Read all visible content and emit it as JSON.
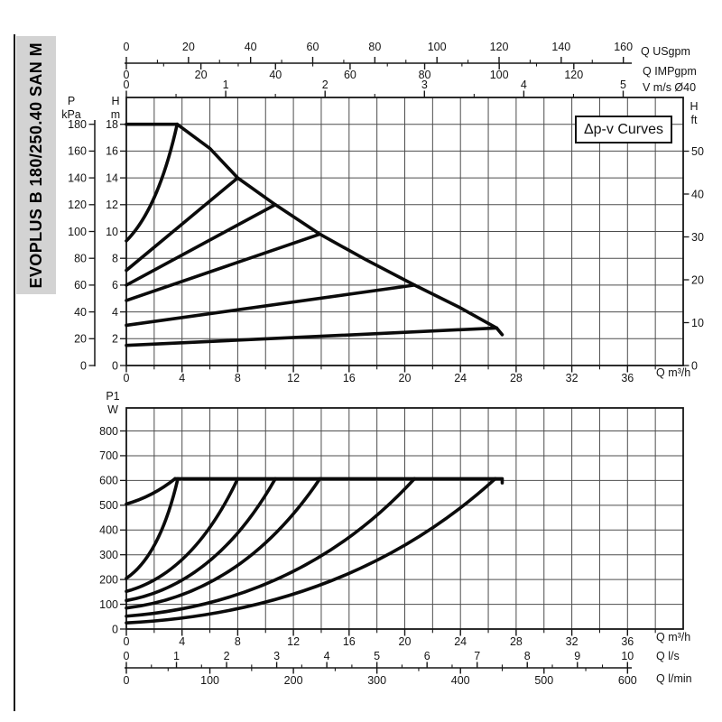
{
  "sidebar": {
    "title": "EVOPLUS B 180/250.40 SAN M"
  },
  "top_chart": {
    "badge_label": "Δp-v Curves",
    "axis_titles": {
      "usgpm": "Q USgpm",
      "impgpm": "Q IMPgpm",
      "vms": "V m/s Ø40",
      "kpa": "P\nkPa",
      "hm": "H\nm",
      "hft": "H\nft",
      "m3h": "Q m³/h"
    }
  },
  "bottom_chart": {
    "axis_titles": {
      "p1w": "P1\nW",
      "m3h": "Q m³/h",
      "ls": "Q l/s",
      "lmin": "Q l/min"
    }
  },
  "chart_data": [
    {
      "id": "head-flow-curves",
      "type": "line",
      "title": "Δp-v Curves",
      "xlabel": "Q m³/h",
      "ylabel": "H m",
      "x_range_m3h": [
        0,
        40
      ],
      "y_range_m": [
        0,
        20
      ],
      "grid": "on",
      "x_ticks_m3h": [
        0,
        4,
        8,
        12,
        16,
        20,
        24,
        28,
        32,
        36
      ],
      "x_minor_step_m3h": 2,
      "x_ticks_usgpm": [
        0,
        20,
        40,
        60,
        80,
        100,
        120,
        140,
        160
      ],
      "x_ticks_impgpm": [
        0,
        20,
        40,
        60,
        80,
        100,
        120
      ],
      "x_ticks_vms": [
        0,
        1,
        2,
        3,
        4,
        5
      ],
      "y_ticks_m": [
        0,
        2,
        4,
        6,
        8,
        10,
        12,
        14,
        16,
        18
      ],
      "y_ticks_kpa": [
        0,
        20,
        40,
        60,
        80,
        100,
        120,
        140,
        160,
        180
      ],
      "y_ticks_ft": [
        0,
        10,
        20,
        30,
        40,
        50
      ],
      "series": [
        {
          "name": "max-head-cap",
          "type": "line",
          "points": [
            [
              0,
              18
            ],
            [
              3.65,
              18
            ]
          ]
        },
        {
          "name": "dpv-setpoint-18m",
          "type": "quad",
          "points": [
            [
              0,
              9.3
            ],
            [
              2.3,
              11.7
            ],
            [
              3.65,
              18
            ]
          ]
        },
        {
          "name": "max-speed-envelope",
          "type": "line",
          "points": [
            [
              3.65,
              18
            ],
            [
              6,
              16.2
            ],
            [
              8,
              14
            ],
            [
              10.7,
              12
            ],
            [
              13.9,
              9.8
            ],
            [
              17.2,
              7.9
            ],
            [
              20.7,
              6.0
            ],
            [
              24,
              4.3
            ],
            [
              26.6,
              2.8
            ],
            [
              27.0,
              2.3
            ]
          ]
        },
        {
          "name": "dpv-setpoint-14m",
          "type": "line",
          "points": [
            [
              0,
              7.1
            ],
            [
              8,
              14
            ]
          ]
        },
        {
          "name": "dpv-setpoint-12m",
          "type": "line",
          "points": [
            [
              0,
              6.0
            ],
            [
              10.7,
              12
            ]
          ]
        },
        {
          "name": "dpv-setpoint-10m",
          "type": "line",
          "points": [
            [
              0,
              4.85
            ],
            [
              13.9,
              9.8
            ]
          ]
        },
        {
          "name": "dpv-setpoint-6m",
          "type": "line",
          "points": [
            [
              0,
              3.0
            ],
            [
              20.7,
              6.0
            ]
          ]
        },
        {
          "name": "dpv-setpoint-3m",
          "type": "line",
          "points": [
            [
              0,
              1.5
            ],
            [
              26.6,
              2.8
            ]
          ]
        }
      ]
    },
    {
      "id": "power-flow-curves",
      "type": "line",
      "xlabel": "Q m³/h",
      "ylabel": "P1 W",
      "x_range_m3h": [
        0,
        40
      ],
      "y_range_w": [
        0,
        890
      ],
      "grid": "on",
      "x_ticks_m3h": [
        0,
        4,
        8,
        12,
        16,
        20,
        24,
        28,
        32,
        36
      ],
      "x_minor_step_m3h": 2,
      "x_ticks_ls": [
        0,
        1,
        2,
        3,
        4,
        5,
        6,
        7,
        8,
        9,
        10
      ],
      "x_ticks_lmin": [
        0,
        100,
        200,
        300,
        400,
        500,
        600
      ],
      "y_ticks_w": [
        0,
        100,
        200,
        300,
        400,
        500,
        600,
        700,
        800
      ],
      "series": [
        {
          "name": "p1-max-head-cap",
          "type": "quad",
          "points": [
            [
              0,
              505
            ],
            [
              1.9,
              535
            ],
            [
              3.5,
              607
            ]
          ]
        },
        {
          "name": "p1-max-limit",
          "type": "line",
          "points": [
            [
              3.5,
              607
            ],
            [
              27.0,
              607
            ],
            [
              27.0,
              590
            ]
          ]
        },
        {
          "name": "p1-dpv-18m",
          "type": "quad",
          "points": [
            [
              0,
              205
            ],
            [
              2.4,
              295
            ],
            [
              3.7,
              607
            ]
          ]
        },
        {
          "name": "p1-dpv-14m",
          "type": "quad",
          "points": [
            [
              0,
              152
            ],
            [
              4.8,
              225
            ],
            [
              8,
              607
            ]
          ]
        },
        {
          "name": "p1-dpv-12m",
          "type": "quad",
          "points": [
            [
              0,
              115
            ],
            [
              6.4,
              180
            ],
            [
              10.7,
              607
            ]
          ]
        },
        {
          "name": "p1-dpv-10m",
          "type": "quad",
          "points": [
            [
              0,
              85
            ],
            [
              8.3,
              140
            ],
            [
              13.9,
              607
            ]
          ]
        },
        {
          "name": "p1-dpv-6m",
          "type": "quad",
          "points": [
            [
              0,
              52
            ],
            [
              12.5,
              105
            ],
            [
              20.7,
              607
            ]
          ]
        },
        {
          "name": "p1-dpv-3m",
          "type": "quad",
          "points": [
            [
              0,
              25
            ],
            [
              16,
              70
            ],
            [
              26.5,
              607
            ]
          ]
        }
      ]
    }
  ]
}
